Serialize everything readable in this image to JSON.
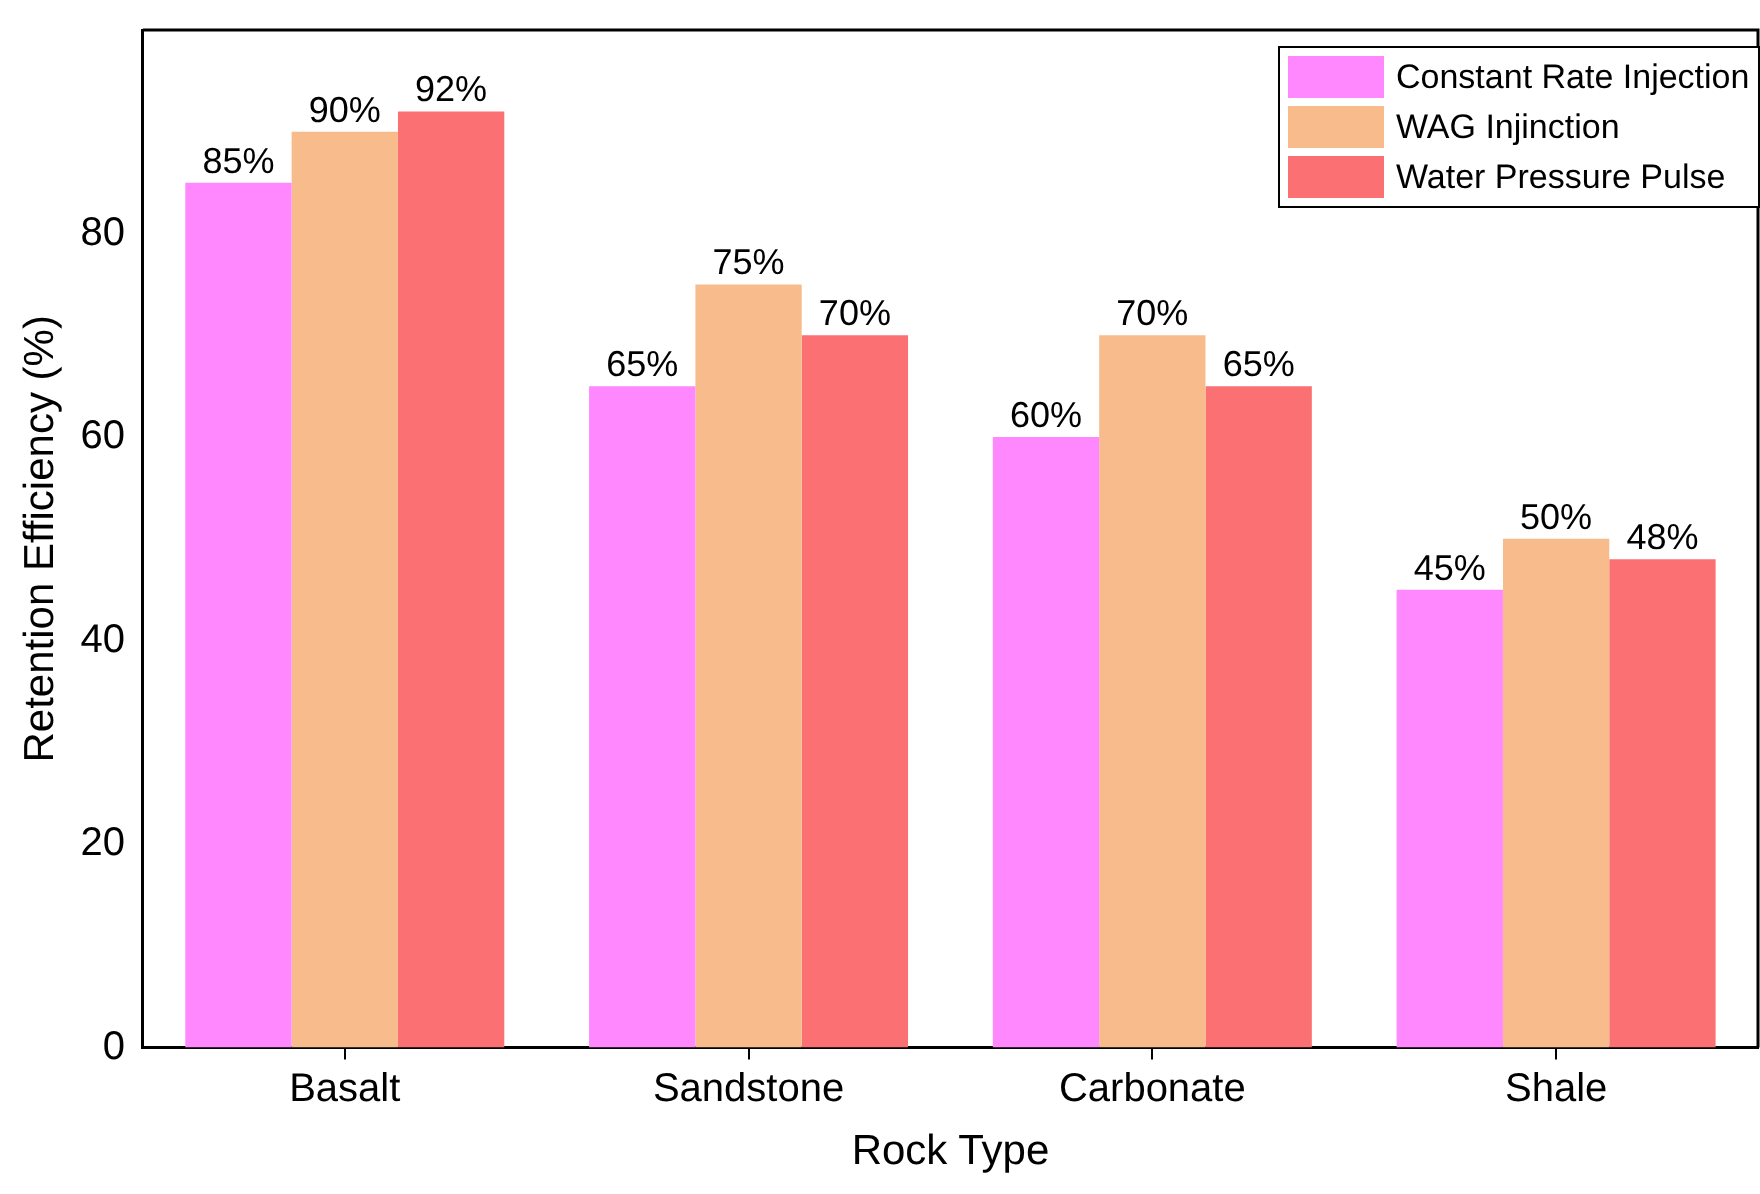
{
  "chart_data": {
    "type": "bar",
    "xlabel": "Rock Type",
    "ylabel": "Retention Efficiency (%)",
    "categories": [
      "Basalt",
      "Sandstone",
      "Carbonate",
      "Shale"
    ],
    "series": [
      {
        "name": "Constant Rate Injection",
        "color": "#ff88ff",
        "values": [
          85,
          65,
          60,
          45
        ],
        "value_labels": [
          "85%",
          "65%",
          "60%",
          "45%"
        ]
      },
      {
        "name": "WAG Injinction",
        "color": "#f8bc8c",
        "values": [
          90,
          75,
          70,
          50
        ],
        "value_labels": [
          "90%",
          "75%",
          "70%",
          "50%"
        ]
      },
      {
        "name": "Water Pressure Pulse",
        "color": "#fb7072",
        "values": [
          92,
          70,
          65,
          48
        ],
        "value_labels": [
          "92%",
          "70%",
          "65%",
          "48%"
        ]
      }
    ],
    "ylim": [
      0,
      100
    ],
    "yticks": [
      0,
      20,
      40,
      60,
      80
    ],
    "grid": false,
    "legend": "top right"
  }
}
